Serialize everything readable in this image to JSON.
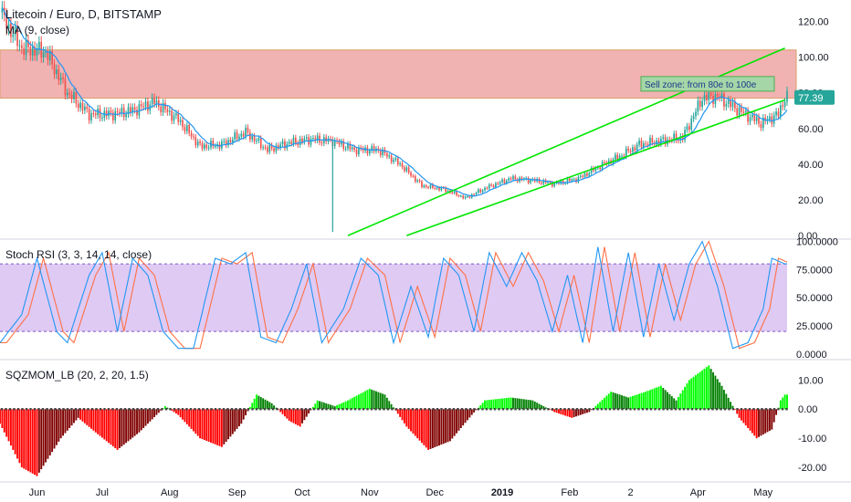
{
  "header": {
    "title": "Litecoin / Euro, D, BITSTAMP",
    "ma_label": "MA (9, close)",
    "stoch_label": "Stoch RSI (3, 3, 14, 14, close)",
    "sqz_label": "SQZMOM_LB (20, 2, 20, 1.5)"
  },
  "colors": {
    "up": "#26a69a",
    "down": "#ef5350",
    "ma": "#2196f3",
    "zone": "#e57373",
    "trend": "#00e600",
    "stoch_k": "#2196f3",
    "stoch_d": "#ff7043",
    "stoch_band": "#d4b8f0",
    "mom_lime": "#00ff00",
    "mom_green": "#008000",
    "mom_red": "#ff0000",
    "mom_maroon": "#800000",
    "price_tag": "#26a69a"
  },
  "chart_data": [
    {
      "type": "candlestick",
      "panel": "price",
      "title": "Litecoin / Euro, D, BITSTAMP",
      "x_range": [
        "2018-05-15",
        "2019-05-12"
      ],
      "ylim": [
        -2,
        132
      ],
      "y_ticks": [
        "120.00",
        "100.00",
        "80.00",
        "60.00",
        "40.00",
        "20.00",
        "0.00"
      ],
      "y_tick_values": [
        120,
        100,
        80,
        60,
        40,
        20,
        0
      ],
      "x_ticks": [
        "Jun",
        "Jul",
        "Aug",
        "Sep",
        "Oct",
        "Nov",
        "Dec",
        "2019",
        "Feb",
        "2",
        "Apr",
        "May"
      ],
      "x_tick_dates": [
        "2018-06-01",
        "2018-07-01",
        "2018-08-01",
        "2018-09-01",
        "2018-10-01",
        "2018-11-01",
        "2018-12-01",
        "2019-01-01",
        "2019-02-01",
        "2019-03-01",
        "2019-04-01",
        "2019-05-01"
      ],
      "close_series": [
        [
          "2018-05-15",
          125
        ],
        [
          "2018-05-25",
          105
        ],
        [
          "2018-06-05",
          103
        ],
        [
          "2018-06-15",
          80
        ],
        [
          "2018-06-25",
          68
        ],
        [
          "2018-07-05",
          68
        ],
        [
          "2018-07-15",
          70
        ],
        [
          "2018-07-25",
          75
        ],
        [
          "2018-08-05",
          65
        ],
        [
          "2018-08-15",
          50
        ],
        [
          "2018-08-25",
          51
        ],
        [
          "2018-09-05",
          58
        ],
        [
          "2018-09-15",
          48
        ],
        [
          "2018-09-25",
          52
        ],
        [
          "2018-10-05",
          54
        ],
        [
          "2018-10-15",
          53
        ],
        [
          "2018-10-25",
          48
        ],
        [
          "2018-11-05",
          48
        ],
        [
          "2018-11-15",
          40
        ],
        [
          "2018-11-25",
          28
        ],
        [
          "2018-12-05",
          26
        ],
        [
          "2018-12-15",
          21
        ],
        [
          "2018-12-25",
          27
        ],
        [
          "2019-01-05",
          32
        ],
        [
          "2019-01-15",
          31
        ],
        [
          "2019-01-25",
          29
        ],
        [
          "2019-02-05",
          32
        ],
        [
          "2019-02-15",
          39
        ],
        [
          "2019-02-25",
          45
        ],
        [
          "2019-03-05",
          51
        ],
        [
          "2019-03-15",
          53
        ],
        [
          "2019-03-25",
          55
        ],
        [
          "2019-04-03",
          77
        ],
        [
          "2019-04-10",
          78
        ],
        [
          "2019-04-20",
          70
        ],
        [
          "2019-04-30",
          63
        ],
        [
          "2019-05-08",
          68
        ],
        [
          "2019-05-11",
          77.39
        ]
      ],
      "ma_label": "MA (9, close)",
      "current_price": 77.39,
      "current_price_label": "77.39",
      "annotation": "Sell zone: from 80e to 100e",
      "zone": {
        "low": 77,
        "high": 104
      },
      "trend_lines": [
        {
          "from": [
            "2018-10-22",
            0
          ],
          "to": [
            "2019-05-11",
            105
          ]
        },
        {
          "from": [
            "2018-11-18",
            0
          ],
          "to": [
            "2019-05-11",
            76
          ]
        }
      ],
      "wick_spike": {
        "date": "2018-10-15",
        "low": 2
      }
    },
    {
      "type": "line",
      "panel": "stoch_rsi",
      "title": "Stoch RSI (3, 3, 14, 14, close)",
      "ylim": [
        -5,
        102
      ],
      "y_ticks": [
        "100.0000",
        "75.0000",
        "50.0000",
        "25.0000",
        "0.0000"
      ],
      "y_tick_values": [
        100,
        75,
        50,
        25,
        0
      ],
      "band": [
        20,
        80
      ],
      "series": [
        {
          "role": "K",
          "values_by_date": [
            [
              "2018-05-15",
              10
            ],
            [
              "2018-05-25",
              35
            ],
            [
              "2018-06-01",
              85
            ],
            [
              "2018-06-10",
              20
            ],
            [
              "2018-06-15",
              10
            ],
            [
              "2018-06-25",
              70
            ],
            [
              "2018-07-01",
              90
            ],
            [
              "2018-07-08",
              20
            ],
            [
              "2018-07-15",
              85
            ],
            [
              "2018-07-22",
              70
            ],
            [
              "2018-07-29",
              20
            ],
            [
              "2018-08-05",
              5
            ],
            [
              "2018-08-12",
              5
            ],
            [
              "2018-08-22",
              85
            ],
            [
              "2018-08-29",
              80
            ],
            [
              "2018-09-05",
              90
            ],
            [
              "2018-09-12",
              15
            ],
            [
              "2018-09-19",
              10
            ],
            [
              "2018-09-26",
              40
            ],
            [
              "2018-10-03",
              80
            ],
            [
              "2018-10-10",
              10
            ],
            [
              "2018-10-20",
              40
            ],
            [
              "2018-10-28",
              85
            ],
            [
              "2018-11-05",
              70
            ],
            [
              "2018-11-12",
              10
            ],
            [
              "2018-11-20",
              60
            ],
            [
              "2018-11-28",
              15
            ],
            [
              "2018-12-05",
              85
            ],
            [
              "2018-12-12",
              70
            ],
            [
              "2018-12-19",
              20
            ],
            [
              "2018-12-26",
              90
            ],
            [
              "2019-01-03",
              60
            ],
            [
              "2019-01-10",
              90
            ],
            [
              "2019-01-17",
              65
            ],
            [
              "2019-01-24",
              20
            ],
            [
              "2019-01-31",
              70
            ],
            [
              "2019-02-07",
              10
            ],
            [
              "2019-02-14",
              95
            ],
            [
              "2019-02-21",
              20
            ],
            [
              "2019-02-28",
              90
            ],
            [
              "2019-03-07",
              15
            ],
            [
              "2019-03-14",
              80
            ],
            [
              "2019-03-21",
              30
            ],
            [
              "2019-03-28",
              80
            ],
            [
              "2019-04-03",
              100
            ],
            [
              "2019-04-10",
              60
            ],
            [
              "2019-04-17",
              5
            ],
            [
              "2019-04-24",
              10
            ],
            [
              "2019-05-01",
              40
            ],
            [
              "2019-05-05",
              85
            ],
            [
              "2019-05-11",
              80
            ]
          ]
        },
        {
          "role": "D",
          "lag_days": 3
        }
      ]
    },
    {
      "type": "bar",
      "panel": "squeeze_momentum",
      "title": "SQZMOM_LB (20, 2, 20, 1.5)",
      "ylim": [
        -25,
        17
      ],
      "y_ticks": [
        "10.00",
        "0.00",
        "-10.00",
        "-20.00"
      ],
      "y_tick_values": [
        10,
        0,
        -10,
        -20
      ],
      "values_by_date": [
        [
          "2018-05-15",
          -5
        ],
        [
          "2018-05-25",
          -20
        ],
        [
          "2018-06-01",
          -23
        ],
        [
          "2018-06-12",
          -10
        ],
        [
          "2018-06-20",
          -3
        ],
        [
          "2018-06-28",
          -8
        ],
        [
          "2018-07-08",
          -14
        ],
        [
          "2018-07-18",
          -8
        ],
        [
          "2018-07-26",
          -2
        ],
        [
          "2018-07-30",
          1
        ],
        [
          "2018-08-05",
          -2
        ],
        [
          "2018-08-15",
          -10
        ],
        [
          "2018-08-25",
          -13
        ],
        [
          "2018-09-03",
          -5
        ],
        [
          "2018-09-10",
          5
        ],
        [
          "2018-09-17",
          2
        ],
        [
          "2018-09-25",
          -4
        ],
        [
          "2018-09-30",
          -6
        ],
        [
          "2018-10-08",
          3
        ],
        [
          "2018-10-16",
          1
        ],
        [
          "2018-10-22",
          3
        ],
        [
          "2018-11-01",
          7
        ],
        [
          "2018-11-08",
          5
        ],
        [
          "2018-11-18",
          -6
        ],
        [
          "2018-11-28",
          -14
        ],
        [
          "2018-12-08",
          -11
        ],
        [
          "2018-12-18",
          -2
        ],
        [
          "2018-12-24",
          3
        ],
        [
          "2019-01-05",
          4
        ],
        [
          "2019-01-15",
          3
        ],
        [
          "2019-01-25",
          -1
        ],
        [
          "2019-02-02",
          -3
        ],
        [
          "2019-02-10",
          -1
        ],
        [
          "2019-02-20",
          6
        ],
        [
          "2019-02-28",
          4
        ],
        [
          "2019-03-08",
          6
        ],
        [
          "2019-03-15",
          8
        ],
        [
          "2019-03-22",
          3
        ],
        [
          "2019-03-28",
          10
        ],
        [
          "2019-04-06",
          15
        ],
        [
          "2019-04-12",
          8
        ],
        [
          "2019-04-20",
          -3
        ],
        [
          "2019-04-28",
          -10
        ],
        [
          "2019-05-05",
          -7
        ],
        [
          "2019-05-09",
          3
        ],
        [
          "2019-05-11",
          5
        ]
      ]
    }
  ]
}
